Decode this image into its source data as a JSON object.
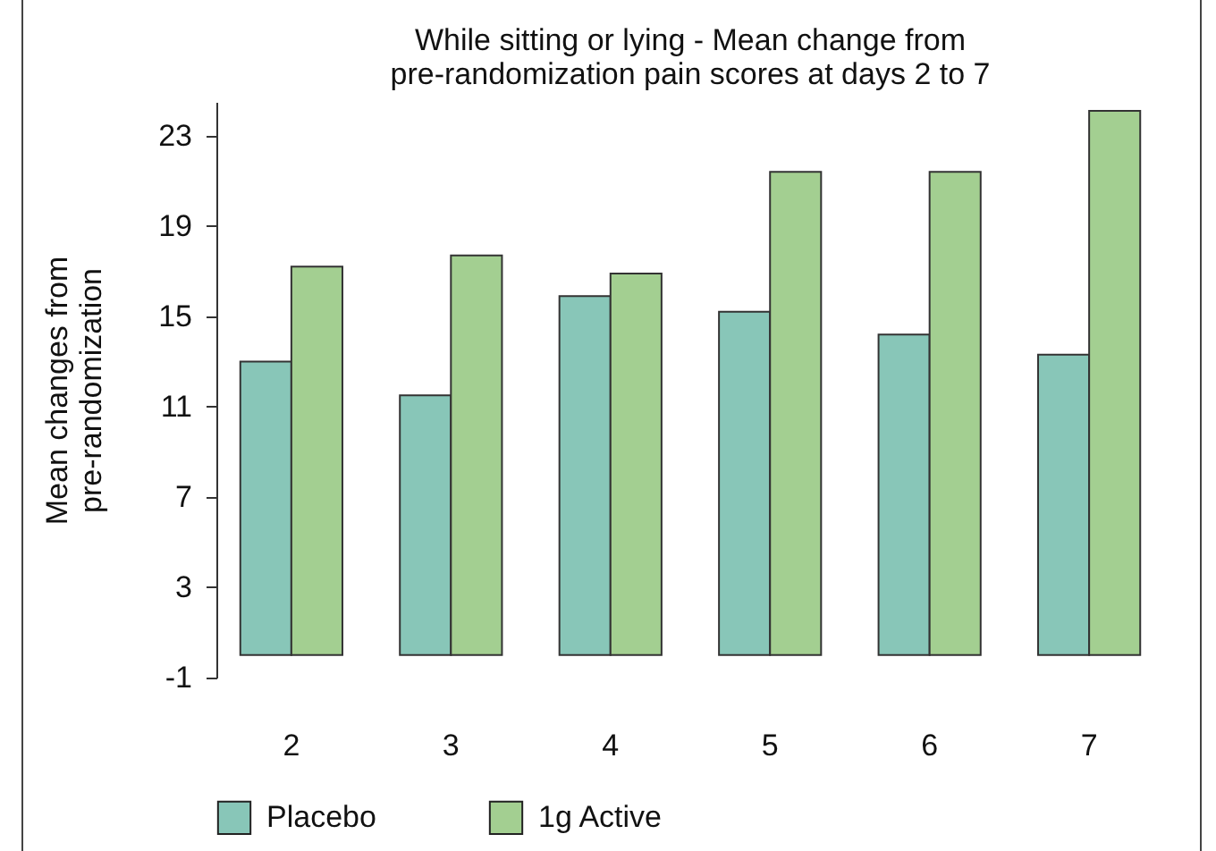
{
  "chart_data": {
    "type": "bar",
    "title": "While sitting or lying - Mean change from\npre-randomization pain scores at days 2 to 7",
    "ylabel": "Mean changes from\npre-randomization",
    "categories": [
      "2",
      "3",
      "4",
      "5",
      "6",
      "7"
    ],
    "series": [
      {
        "name": "Placebo",
        "color": "#88c6b8",
        "values": [
          13.0,
          11.5,
          15.9,
          15.2,
          14.2,
          13.3
        ]
      },
      {
        "name": "1g Active",
        "color": "#a3cf91",
        "values": [
          17.2,
          17.7,
          16.9,
          21.4,
          21.4,
          24.1
        ]
      }
    ],
    "ylim": [
      -1,
      24.5
    ],
    "yticks": [
      -1,
      3,
      7,
      11,
      15,
      19,
      23
    ],
    "legend": "bottom"
  }
}
